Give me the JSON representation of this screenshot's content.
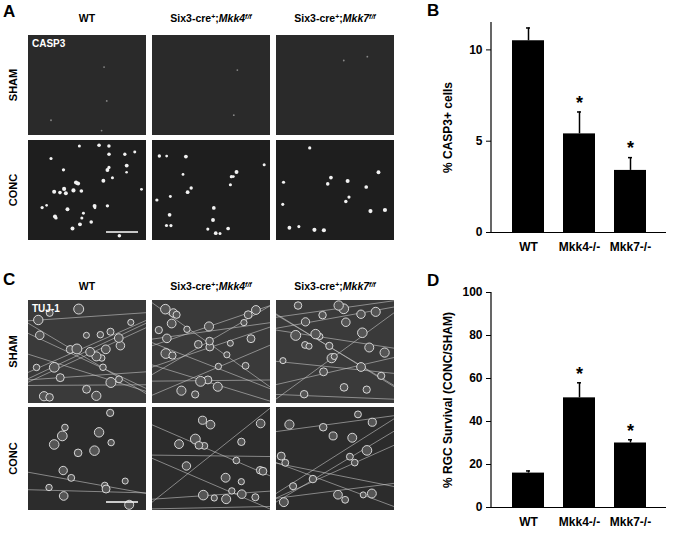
{
  "image_panels": [
    {
      "panel": "A",
      "stain": "CASP3",
      "rows": [
        "SHAM",
        "CONC"
      ],
      "columns": [
        [
          {
            "text": "WT"
          }
        ],
        [
          {
            "text": "Six3-cre"
          },
          {
            "text": "+",
            "sup": true
          },
          {
            "text": ";"
          },
          {
            "text": "Mkk4",
            "italic": true
          },
          {
            "text": "f/f",
            "sup": true,
            "italic": true
          }
        ],
        [
          {
            "text": "Six3-cre"
          },
          {
            "text": "+",
            "sup": true
          },
          {
            "text": ";"
          },
          {
            "text": "Mkk7",
            "italic": true
          },
          {
            "text": "f/f",
            "sup": true,
            "italic": true
          }
        ]
      ]
    },
    {
      "panel": "C",
      "stain": "TUJ-1",
      "rows": [
        "SHAM",
        "CONC"
      ],
      "columns": [
        [
          {
            "text": "WT"
          }
        ],
        [
          {
            "text": "Six3-cre"
          },
          {
            "text": "+",
            "sup": true
          },
          {
            "text": ";"
          },
          {
            "text": "Mkk4",
            "italic": true
          },
          {
            "text": "f/f",
            "sup": true,
            "italic": true
          }
        ],
        [
          {
            "text": "Six3-cre"
          },
          {
            "text": "+",
            "sup": true
          },
          {
            "text": ";"
          },
          {
            "text": "Mkk7",
            "italic": true
          },
          {
            "text": "f/f",
            "sup": true,
            "italic": true
          }
        ]
      ]
    }
  ],
  "chart_data": [
    {
      "panel": "B",
      "type": "bar",
      "categories": [
        "WT",
        "Mkk4-/-",
        "Mkk7-/-"
      ],
      "values": [
        10.5,
        5.4,
        3.4
      ],
      "errors": [
        0.7,
        1.2,
        0.7
      ],
      "annotations": [
        null,
        "*",
        "*"
      ],
      "y_label": "% CASP3+ cells",
      "ylim": [
        0,
        11.5
      ],
      "yticks": [
        0,
        5,
        10
      ],
      "color": "#000000",
      "grid": false
    },
    {
      "panel": "D",
      "type": "bar",
      "categories": [
        "WT",
        "Mkk4-/-",
        "Mkk7-/-"
      ],
      "values": [
        16,
        51,
        30
      ],
      "errors": [
        1,
        7,
        1.5
      ],
      "annotations": [
        null,
        "*",
        "*"
      ],
      "y_label": "% RGC Survival (CONC/SHAM)",
      "ylim": [
        0,
        100
      ],
      "yticks": [
        0,
        20,
        40,
        60,
        80,
        100
      ],
      "color": "#000000",
      "grid": false
    }
  ]
}
